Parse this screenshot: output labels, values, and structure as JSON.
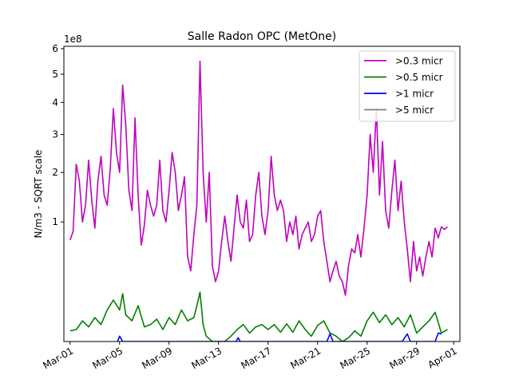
{
  "chart_data": {
    "type": "line",
    "title": "Salle Radon OPC (MetOne)",
    "ylabel": "N/m3 - SQRT scale",
    "xlabel": "",
    "y_scale": "sqrt",
    "y_multiplier_label": "1e8",
    "ylim": [
      0,
      6.1
    ],
    "xlim": [
      "2024-02-29T12:00",
      "2024-04-01T12:00"
    ],
    "y_ticks": [
      1,
      2,
      3,
      4,
      5,
      6
    ],
    "y_tick_labels": [
      "1",
      "2",
      "3",
      "4",
      "5",
      "6"
    ],
    "x_ticks": [
      "2024-03-01",
      "2024-03-05",
      "2024-03-09",
      "2024-03-13",
      "2024-03-17",
      "2024-03-21",
      "2024-03-25",
      "2024-03-29",
      "2024-04-01"
    ],
    "x_tick_labels": [
      "Mar-01",
      "Mar-05",
      "Mar-09",
      "Mar-13",
      "Mar-17",
      "Mar-21",
      "Mar-25",
      "Mar-29",
      "Apr-01"
    ],
    "grid": false,
    "legend_position": "top-right",
    "series": [
      {
        "name": ">0.3 micr",
        "color": "#bf00bf",
        "points": [
          [
            "2024-03-01T00:00",
            0.72
          ],
          [
            "2024-03-01T06:00",
            0.85
          ],
          [
            "2024-03-01T12:00",
            2.2
          ],
          [
            "2024-03-01T18:00",
            1.8
          ],
          [
            "2024-03-02T00:00",
            1.0
          ],
          [
            "2024-03-02T06:00",
            1.3
          ],
          [
            "2024-03-02T12:00",
            2.3
          ],
          [
            "2024-03-02T18:00",
            1.4
          ],
          [
            "2024-03-03T00:00",
            0.9
          ],
          [
            "2024-03-03T06:00",
            1.8
          ],
          [
            "2024-03-03T12:00",
            2.4
          ],
          [
            "2024-03-03T18:00",
            1.5
          ],
          [
            "2024-03-04T00:00",
            1.3
          ],
          [
            "2024-03-04T06:00",
            2.1
          ],
          [
            "2024-03-04T12:00",
            3.8
          ],
          [
            "2024-03-04T18:00",
            2.5
          ],
          [
            "2024-03-05T00:00",
            2.0
          ],
          [
            "2024-03-05T06:00",
            4.6
          ],
          [
            "2024-03-05T12:00",
            3.3
          ],
          [
            "2024-03-05T18:00",
            1.6
          ],
          [
            "2024-03-06T00:00",
            1.2
          ],
          [
            "2024-03-06T06:00",
            3.5
          ],
          [
            "2024-03-06T12:00",
            1.5
          ],
          [
            "2024-03-06T18:00",
            0.65
          ],
          [
            "2024-03-07T00:00",
            0.95
          ],
          [
            "2024-03-07T06:00",
            1.6
          ],
          [
            "2024-03-07T12:00",
            1.3
          ],
          [
            "2024-03-07T18:00",
            1.1
          ],
          [
            "2024-03-08T00:00",
            1.3
          ],
          [
            "2024-03-08T06:00",
            2.3
          ],
          [
            "2024-03-08T12:00",
            1.2
          ],
          [
            "2024-03-08T18:00",
            1.0
          ],
          [
            "2024-03-09T00:00",
            1.6
          ],
          [
            "2024-03-09T06:00",
            2.5
          ],
          [
            "2024-03-09T12:00",
            2.0
          ],
          [
            "2024-03-09T18:00",
            1.2
          ],
          [
            "2024-03-10T00:00",
            1.5
          ],
          [
            "2024-03-10T06:00",
            1.9
          ],
          [
            "2024-03-10T12:00",
            0.5
          ],
          [
            "2024-03-10T18:00",
            0.35
          ],
          [
            "2024-03-11T00:00",
            0.8
          ],
          [
            "2024-03-11T06:00",
            1.3
          ],
          [
            "2024-03-11T12:00",
            5.5
          ],
          [
            "2024-03-11T18:00",
            2.0
          ],
          [
            "2024-03-12T00:00",
            1.0
          ],
          [
            "2024-03-12T06:00",
            2.0
          ],
          [
            "2024-03-12T12:00",
            0.4
          ],
          [
            "2024-03-12T18:00",
            0.25
          ],
          [
            "2024-03-13T00:00",
            0.35
          ],
          [
            "2024-03-13T06:00",
            0.7
          ],
          [
            "2024-03-13T12:00",
            1.1
          ],
          [
            "2024-03-13T18:00",
            0.7
          ],
          [
            "2024-03-14T00:00",
            0.45
          ],
          [
            "2024-03-14T06:00",
            0.9
          ],
          [
            "2024-03-14T12:00",
            1.5
          ],
          [
            "2024-03-14T18:00",
            1.0
          ],
          [
            "2024-03-15T00:00",
            0.9
          ],
          [
            "2024-03-15T06:00",
            1.4
          ],
          [
            "2024-03-15T12:00",
            0.7
          ],
          [
            "2024-03-15T18:00",
            0.8
          ],
          [
            "2024-03-16T00:00",
            1.5
          ],
          [
            "2024-03-16T06:00",
            2.0
          ],
          [
            "2024-03-16T12:00",
            1.1
          ],
          [
            "2024-03-16T18:00",
            0.8
          ],
          [
            "2024-03-17T00:00",
            1.2
          ],
          [
            "2024-03-17T06:00",
            2.4
          ],
          [
            "2024-03-17T12:00",
            1.5
          ],
          [
            "2024-03-17T18:00",
            1.2
          ],
          [
            "2024-03-18T00:00",
            1.4
          ],
          [
            "2024-03-18T06:00",
            1.2
          ],
          [
            "2024-03-18T12:00",
            0.7
          ],
          [
            "2024-03-18T18:00",
            1.0
          ],
          [
            "2024-03-19T00:00",
            0.8
          ],
          [
            "2024-03-19T06:00",
            1.1
          ],
          [
            "2024-03-19T12:00",
            0.6
          ],
          [
            "2024-03-19T18:00",
            0.8
          ],
          [
            "2024-03-20T00:00",
            0.9
          ],
          [
            "2024-03-20T06:00",
            1.0
          ],
          [
            "2024-03-20T12:00",
            0.7
          ],
          [
            "2024-03-20T18:00",
            0.8
          ],
          [
            "2024-03-21T00:00",
            1.1
          ],
          [
            "2024-03-21T06:00",
            1.2
          ],
          [
            "2024-03-21T12:00",
            0.7
          ],
          [
            "2024-03-21T18:00",
            0.45
          ],
          [
            "2024-03-22T00:00",
            0.25
          ],
          [
            "2024-03-22T06:00",
            0.35
          ],
          [
            "2024-03-22T12:00",
            0.45
          ],
          [
            "2024-03-22T18:00",
            0.3
          ],
          [
            "2024-03-23T00:00",
            0.25
          ],
          [
            "2024-03-23T06:00",
            0.15
          ],
          [
            "2024-03-23T12:00",
            0.4
          ],
          [
            "2024-03-23T18:00",
            0.6
          ],
          [
            "2024-03-24T00:00",
            0.55
          ],
          [
            "2024-03-24T06:00",
            0.8
          ],
          [
            "2024-03-24T12:00",
            0.5
          ],
          [
            "2024-03-24T18:00",
            0.9
          ],
          [
            "2024-03-25T00:00",
            1.5
          ],
          [
            "2024-03-25T06:00",
            3.0
          ],
          [
            "2024-03-25T12:00",
            2.0
          ],
          [
            "2024-03-25T18:00",
            3.8
          ],
          [
            "2024-03-26T00:00",
            1.5
          ],
          [
            "2024-03-26T06:00",
            2.8
          ],
          [
            "2024-03-26T12:00",
            1.2
          ],
          [
            "2024-03-26T18:00",
            0.9
          ],
          [
            "2024-03-27T00:00",
            1.6
          ],
          [
            "2024-03-27T06:00",
            2.3
          ],
          [
            "2024-03-27T12:00",
            1.2
          ],
          [
            "2024-03-27T18:00",
            1.8
          ],
          [
            "2024-03-28T00:00",
            1.0
          ],
          [
            "2024-03-28T06:00",
            0.6
          ],
          [
            "2024-03-28T12:00",
            0.25
          ],
          [
            "2024-03-28T18:00",
            0.7
          ],
          [
            "2024-03-29T00:00",
            0.35
          ],
          [
            "2024-03-29T06:00",
            0.5
          ],
          [
            "2024-03-29T12:00",
            0.3
          ],
          [
            "2024-03-29T18:00",
            0.5
          ],
          [
            "2024-03-30T00:00",
            0.7
          ],
          [
            "2024-03-30T06:00",
            0.5
          ],
          [
            "2024-03-30T12:00",
            0.9
          ],
          [
            "2024-03-30T18:00",
            0.75
          ],
          [
            "2024-03-31T00:00",
            0.92
          ],
          [
            "2024-03-31T06:00",
            0.88
          ],
          [
            "2024-03-31T12:00",
            0.92
          ]
        ]
      },
      {
        "name": ">0.5 micr",
        "color": "#008000",
        "points": [
          [
            "2024-03-01T00:00",
            0.008
          ],
          [
            "2024-03-01T12:00",
            0.01
          ],
          [
            "2024-03-02T00:00",
            0.03
          ],
          [
            "2024-03-02T12:00",
            0.015
          ],
          [
            "2024-03-03T00:00",
            0.04
          ],
          [
            "2024-03-03T12:00",
            0.02
          ],
          [
            "2024-03-04T00:00",
            0.07
          ],
          [
            "2024-03-04T12:00",
            0.12
          ],
          [
            "2024-03-05T00:00",
            0.07
          ],
          [
            "2024-03-05T06:00",
            0.16
          ],
          [
            "2024-03-05T12:00",
            0.05
          ],
          [
            "2024-03-06T00:00",
            0.03
          ],
          [
            "2024-03-06T12:00",
            0.09
          ],
          [
            "2024-03-07T00:00",
            0.015
          ],
          [
            "2024-03-07T12:00",
            0.02
          ],
          [
            "2024-03-08T00:00",
            0.035
          ],
          [
            "2024-03-08T12:00",
            0.01
          ],
          [
            "2024-03-09T00:00",
            0.04
          ],
          [
            "2024-03-09T12:00",
            0.02
          ],
          [
            "2024-03-10T00:00",
            0.07
          ],
          [
            "2024-03-10T12:00",
            0.03
          ],
          [
            "2024-03-11T00:00",
            0.04
          ],
          [
            "2024-03-11T06:00",
            0.09
          ],
          [
            "2024-03-11T12:00",
            0.17
          ],
          [
            "2024-03-11T18:00",
            0.02
          ],
          [
            "2024-03-12T00:00",
            0.002
          ],
          [
            "2024-03-12T12:00",
            0.0
          ],
          [
            "2024-03-13T00:00",
            0.0
          ],
          [
            "2024-03-13T12:00",
            0.0
          ],
          [
            "2024-03-14T00:00",
            0.002
          ],
          [
            "2024-03-14T12:00",
            0.01
          ],
          [
            "2024-03-15T00:00",
            0.02
          ],
          [
            "2024-03-15T12:00",
            0.005
          ],
          [
            "2024-03-16T00:00",
            0.015
          ],
          [
            "2024-03-16T12:00",
            0.02
          ],
          [
            "2024-03-17T00:00",
            0.01
          ],
          [
            "2024-03-17T12:00",
            0.02
          ],
          [
            "2024-03-18T00:00",
            0.006
          ],
          [
            "2024-03-18T12:00",
            0.022
          ],
          [
            "2024-03-19T00:00",
            0.006
          ],
          [
            "2024-03-19T12:00",
            0.03
          ],
          [
            "2024-03-20T00:00",
            0.01
          ],
          [
            "2024-03-20T12:00",
            0.002
          ],
          [
            "2024-03-21T00:00",
            0.018
          ],
          [
            "2024-03-21T12:00",
            0.03
          ],
          [
            "2024-03-22T00:00",
            0.005
          ],
          [
            "2024-03-22T12:00",
            0.002
          ],
          [
            "2024-03-23T00:00",
            0.0
          ],
          [
            "2024-03-23T12:00",
            0.001
          ],
          [
            "2024-03-24T00:00",
            0.008
          ],
          [
            "2024-03-24T12:00",
            0.002
          ],
          [
            "2024-03-25T00:00",
            0.03
          ],
          [
            "2024-03-25T12:00",
            0.06
          ],
          [
            "2024-03-26T00:00",
            0.025
          ],
          [
            "2024-03-26T12:00",
            0.05
          ],
          [
            "2024-03-27T00:00",
            0.02
          ],
          [
            "2024-03-27T12:00",
            0.04
          ],
          [
            "2024-03-28T00:00",
            0.015
          ],
          [
            "2024-03-28T12:00",
            0.05
          ],
          [
            "2024-03-29T00:00",
            0.005
          ],
          [
            "2024-03-29T12:00",
            0.015
          ],
          [
            "2024-03-30T00:00",
            0.03
          ],
          [
            "2024-03-30T12:00",
            0.06
          ],
          [
            "2024-03-31T00:00",
            0.005
          ],
          [
            "2024-03-31T12:00",
            0.01
          ]
        ]
      },
      {
        "name": ">1 micr",
        "color": "#0000ff",
        "points": [
          [
            "2024-03-04T20:00",
            0.0
          ],
          [
            "2024-03-05T00:00",
            0.002
          ],
          [
            "2024-03-05T06:00",
            0.0
          ],
          [
            "2024-03-14T10:00",
            0.0
          ],
          [
            "2024-03-14T14:00",
            0.001
          ],
          [
            "2024-03-14T18:00",
            0.0
          ],
          [
            "2024-03-21T18:00",
            0.0
          ],
          [
            "2024-03-22T00:00",
            0.004
          ],
          [
            "2024-03-22T06:00",
            0.0
          ],
          [
            "2024-03-27T20:00",
            0.0
          ],
          [
            "2024-03-28T06:00",
            0.004
          ],
          [
            "2024-03-28T12:00",
            0.0
          ],
          [
            "2024-03-30T12:00",
            0.0
          ],
          [
            "2024-03-30T18:00",
            0.005
          ],
          [
            "2024-03-31T00:00",
            0.004
          ]
        ]
      },
      {
        "name": ">5 micr",
        "color": "#808080",
        "points": []
      }
    ]
  }
}
